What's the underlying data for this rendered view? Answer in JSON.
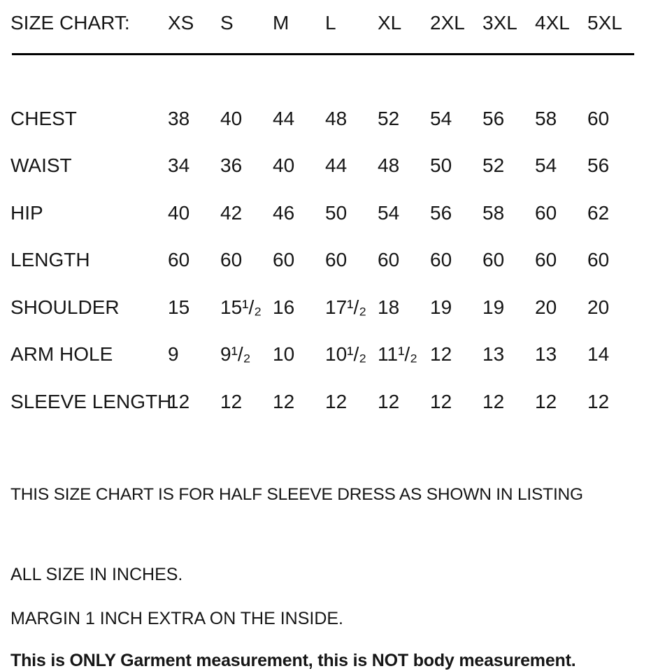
{
  "title": "SIZE CHART:",
  "sizes": [
    "XS",
    "S",
    "M",
    "L",
    "XL",
    "2XL",
    "3XL",
    "4XL",
    "5XL"
  ],
  "table": {
    "rows": [
      {
        "label": "CHEST",
        "cells": [
          "38",
          "40",
          "44",
          "48",
          "52",
          "54",
          "56",
          "58",
          "60"
        ]
      },
      {
        "label": "WAIST",
        "cells": [
          "34",
          "36",
          "40",
          "44",
          "48",
          "50",
          "52",
          "54",
          "56"
        ]
      },
      {
        "label": "HIP",
        "cells": [
          "40",
          "42",
          "46",
          "50",
          "54",
          "56",
          "58",
          "60",
          "62"
        ]
      },
      {
        "label": "LENGTH",
        "cells": [
          "60",
          "60",
          "60",
          "60",
          "60",
          "60",
          "60",
          "60",
          "60"
        ]
      },
      {
        "label": "SHOULDER",
        "cells": [
          "15",
          "15¹/₂",
          "16",
          "17¹/₂",
          "18",
          "19",
          "19",
          "20",
          "20"
        ]
      },
      {
        "label": "ARM HOLE",
        "cells": [
          "9",
          "9¹/₂",
          "10",
          "10¹/₂",
          "11¹/₂",
          "12",
          "13",
          "13",
          "14"
        ]
      },
      {
        "label": "SLEEVE LENGTH",
        "cells": [
          "12",
          "12",
          "12",
          "12",
          "12",
          "12",
          "12",
          "12",
          "12"
        ]
      }
    ]
  },
  "notes": {
    "listing": "THIS SIZE CHART IS FOR HALF SLEEVE DRESS AS SHOWN IN LISTING",
    "units": "ALL SIZE IN INCHES.",
    "margin": "MARGIN 1 INCH EXTRA ON THE INSIDE.",
    "disclaimer": "This is ONLY Garment measurement, this is NOT body measurement."
  },
  "colors": {
    "background": "#ffffff",
    "text": "#161616",
    "rule": "#000000"
  }
}
